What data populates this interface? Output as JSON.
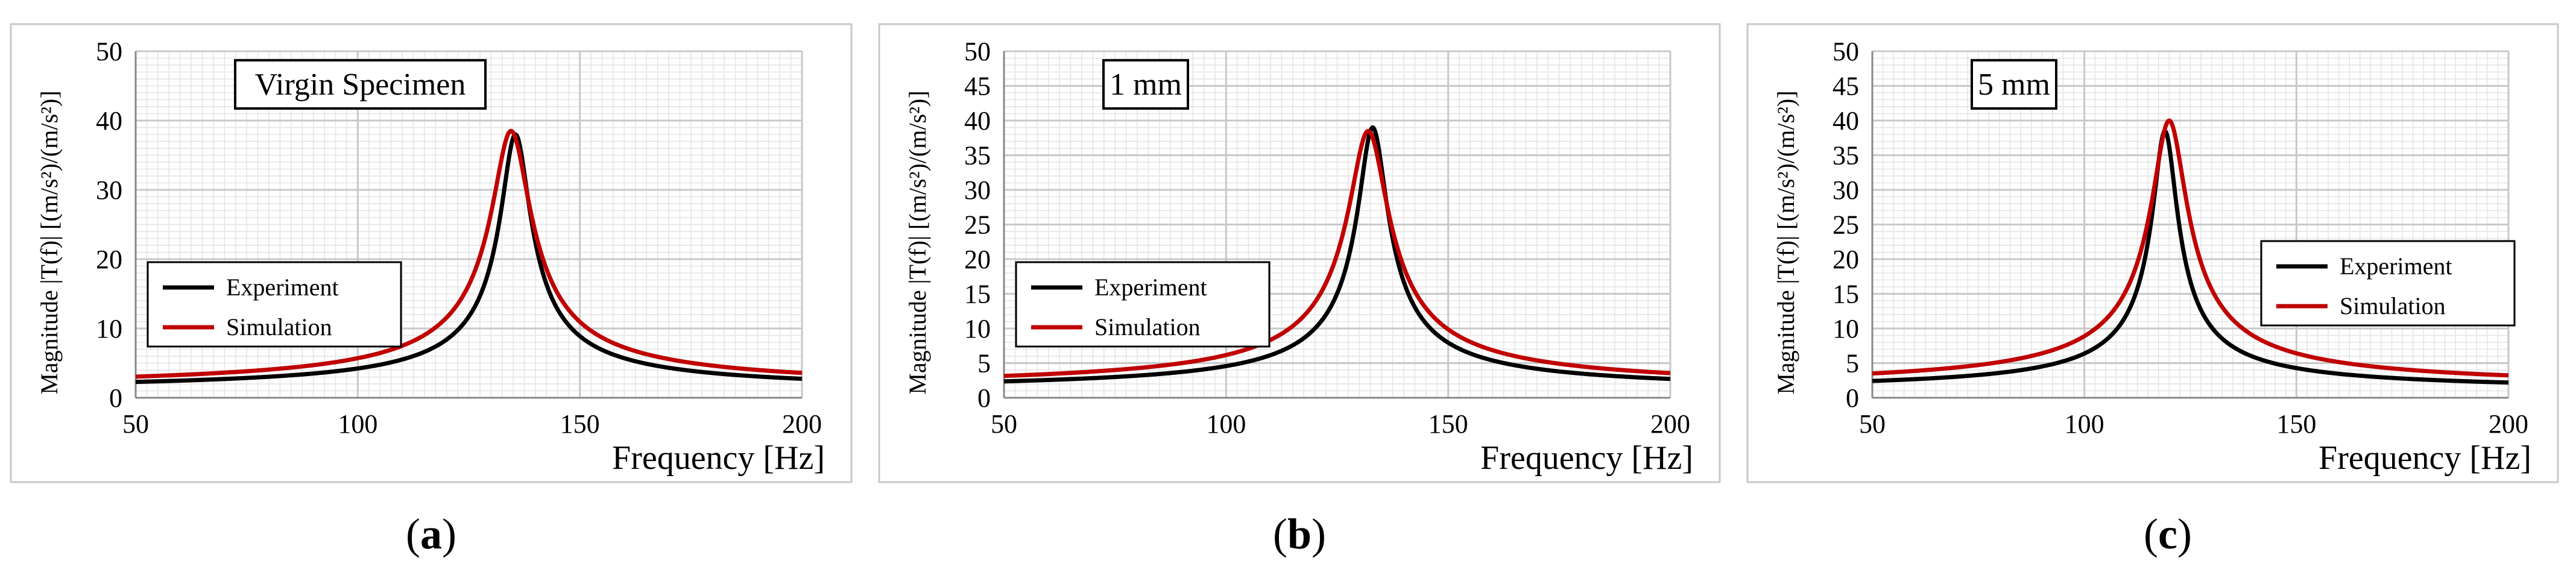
{
  "colors": {
    "experiment": "#000000",
    "simulation": "#c00000",
    "grid_major": "#c8c8c8",
    "grid_minor": "#e4e4e4",
    "frame": "#c8c8c8"
  },
  "chart_data": [
    {
      "type": "line",
      "panel_label": "a",
      "title": "Virgin Specimen",
      "xlabel": "Frequency [Hz]",
      "ylabel": "Magnitude |T(f)|  [(m/s²)/(m/s²)]",
      "xlim": [
        50,
        200
      ],
      "ylim": [
        0,
        50
      ],
      "xticks": [
        "50",
        "100",
        "150",
        "200"
      ],
      "yticks": [
        "0",
        "10",
        "20",
        "30",
        "40",
        "50"
      ],
      "legend_position": "mid-left",
      "series": [
        {
          "name": "Experiment",
          "color": "#000000",
          "peak_freq": 135.5,
          "peak_mag": 38.0,
          "base": 0.9,
          "half_width": 3.2
        },
        {
          "name": "Simulation",
          "color": "#c00000",
          "peak_freq": 134.5,
          "peak_mag": 38.5,
          "base": 1.2,
          "half_width": 4.2
        }
      ]
    },
    {
      "type": "line",
      "panel_label": "b",
      "title": "1 mm",
      "xlabel": "Frequency [Hz]",
      "ylabel": "Magnitude |T(f)|  [(m/s²)/(m/s²)]",
      "xlim": [
        50,
        200
      ],
      "ylim": [
        0,
        50
      ],
      "xticks": [
        "50",
        "100",
        "150",
        "200"
      ],
      "yticks": [
        "0",
        "5",
        "10",
        "15",
        "20",
        "25",
        "30",
        "35",
        "40",
        "45",
        "50"
      ],
      "legend_position": "mid-left",
      "series": [
        {
          "name": "Experiment",
          "color": "#000000",
          "peak_freq": 133.0,
          "peak_mag": 39.0,
          "base": 0.9,
          "half_width": 3.2
        },
        {
          "name": "Simulation",
          "color": "#c00000",
          "peak_freq": 132.0,
          "peak_mag": 38.5,
          "base": 1.2,
          "half_width": 4.3
        }
      ]
    },
    {
      "type": "line",
      "panel_label": "c",
      "title": "5 mm",
      "xlabel": "Frequency [Hz]",
      "ylabel": "Magnitude |T(f)|  [(m/s²)/(m/s²)]",
      "xlim": [
        50,
        200
      ],
      "ylim": [
        0,
        50
      ],
      "xticks": [
        "50",
        "100",
        "150",
        "200"
      ],
      "yticks": [
        "0",
        "5",
        "10",
        "15",
        "20",
        "25",
        "30",
        "35",
        "40",
        "45",
        "50"
      ],
      "legend_position": "mid-right",
      "series": [
        {
          "name": "Experiment",
          "color": "#000000",
          "peak_freq": 119.0,
          "peak_mag": 38.5,
          "base": 0.9,
          "half_width": 2.8
        },
        {
          "name": "Simulation",
          "color": "#c00000",
          "peak_freq": 120.0,
          "peak_mag": 40.0,
          "base": 1.3,
          "half_width": 4.0
        }
      ]
    }
  ]
}
